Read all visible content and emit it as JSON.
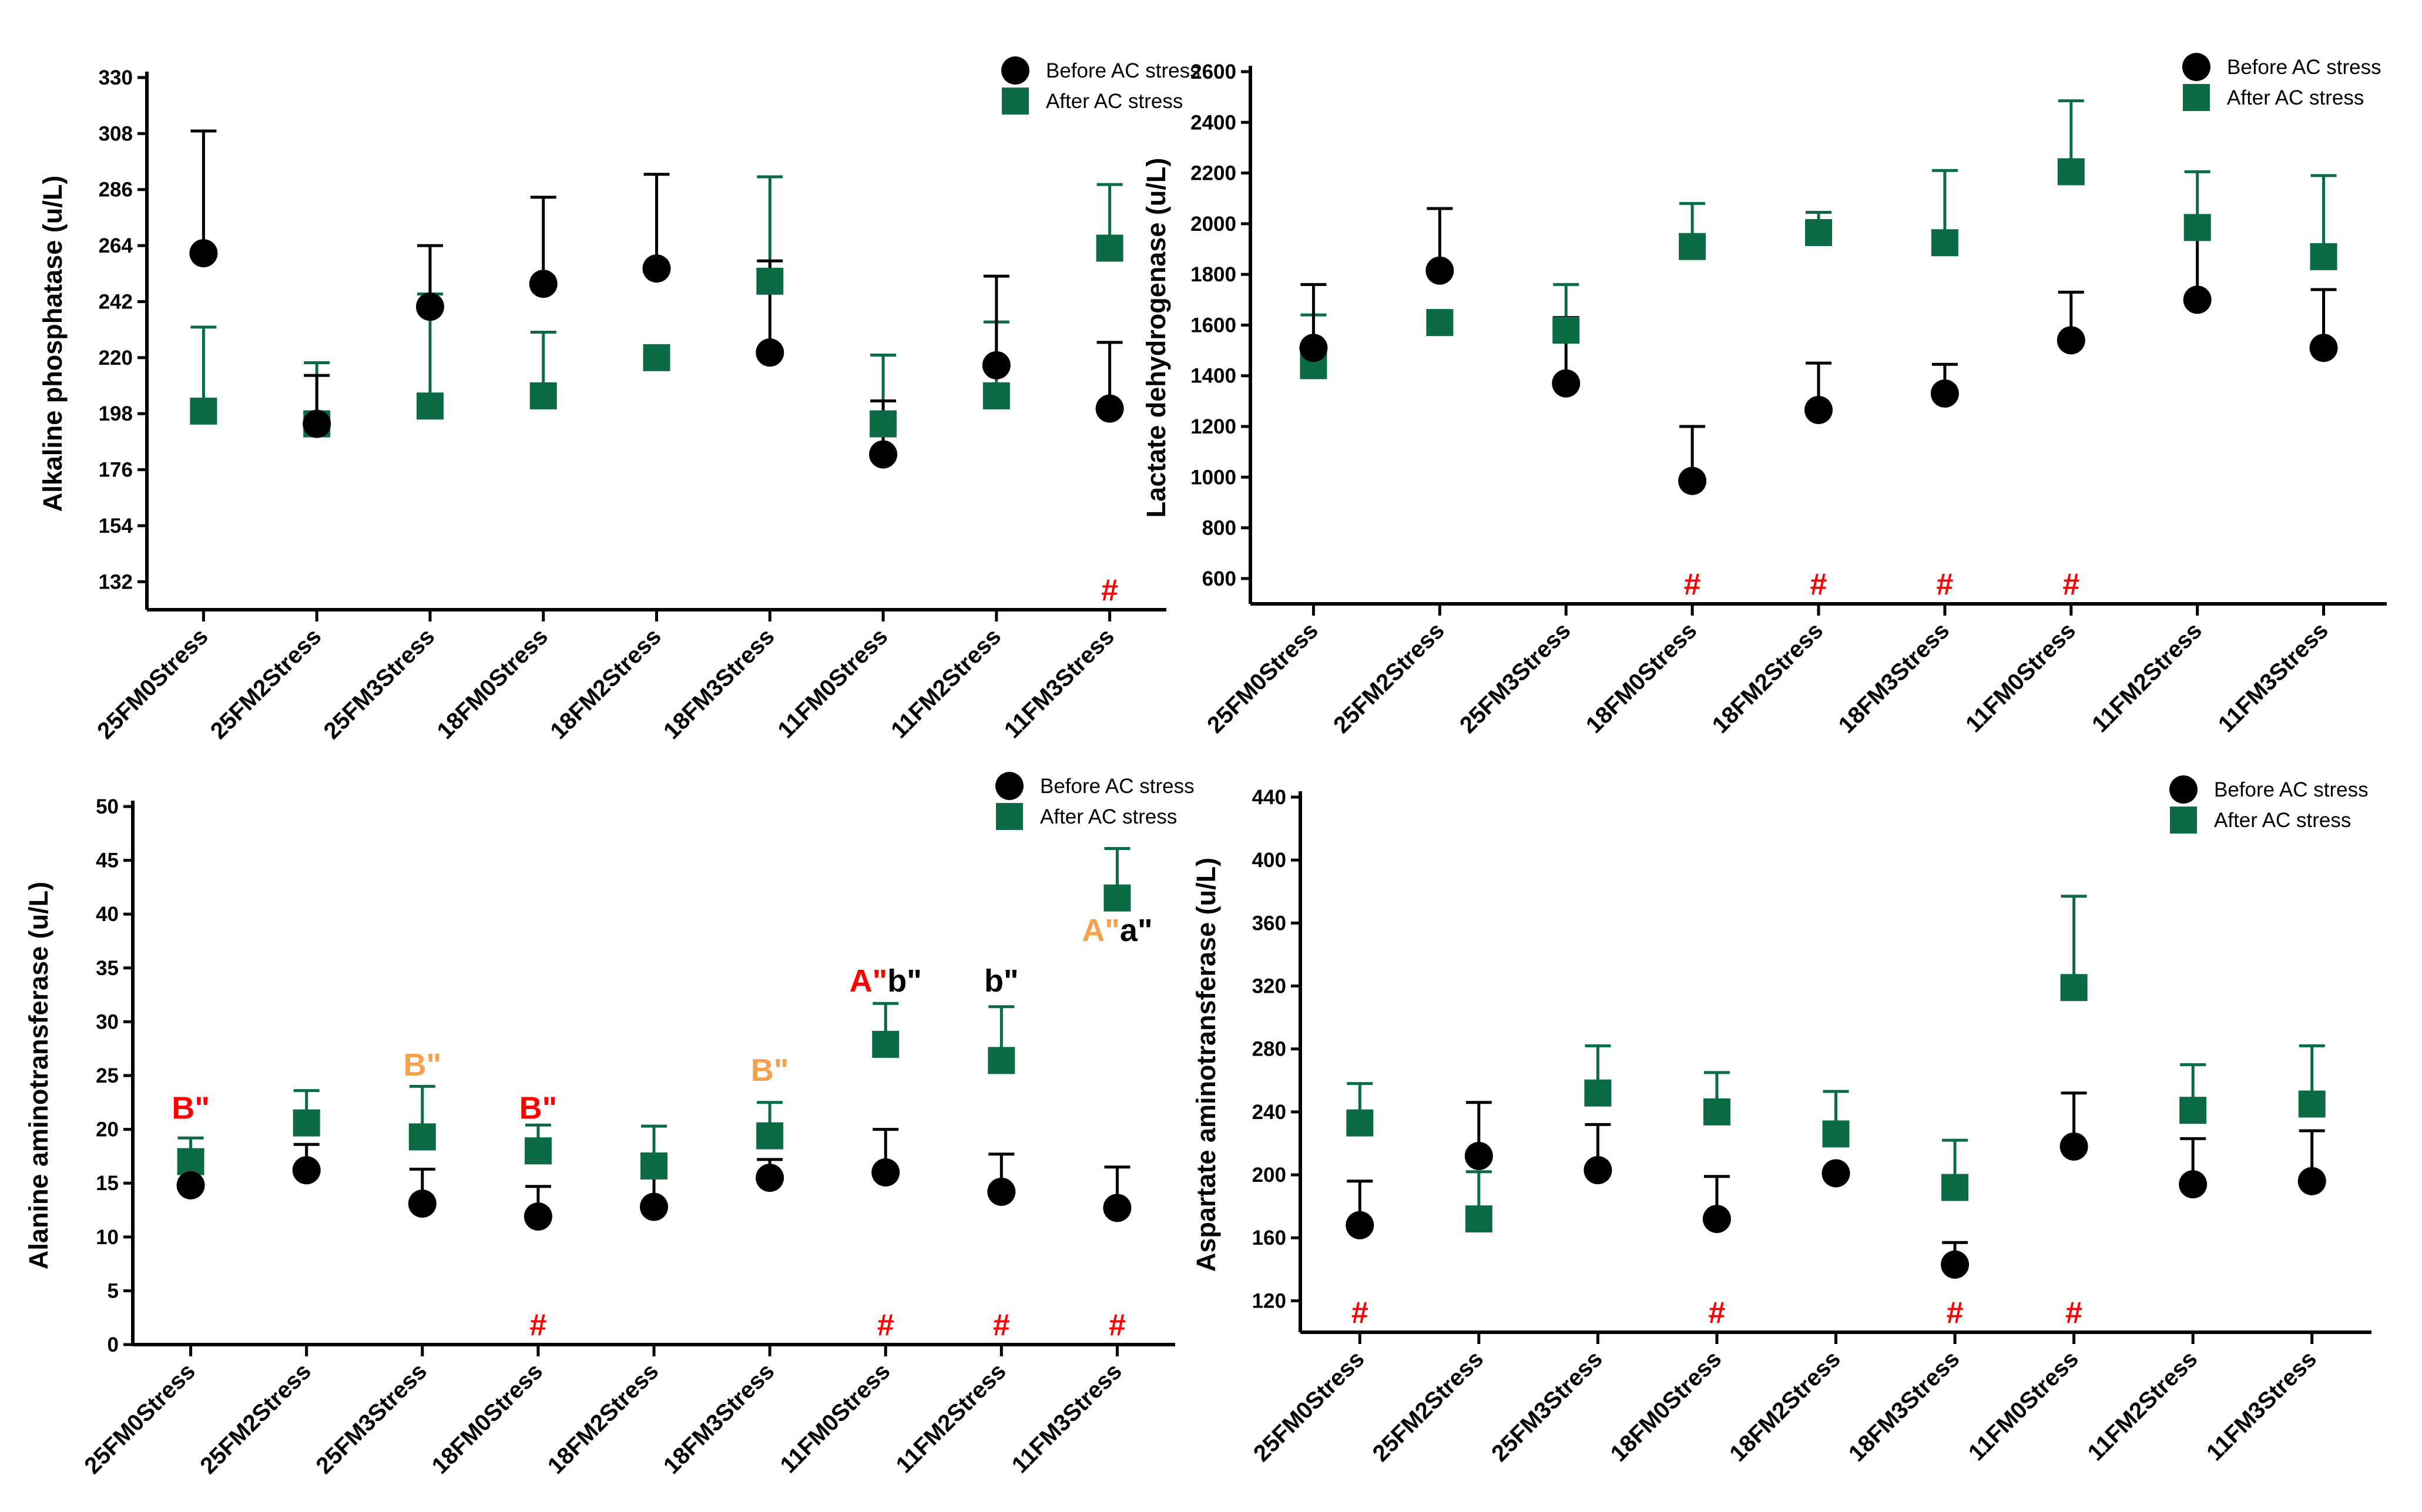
{
  "chart_data": [
    {
      "type": "scatter",
      "ylabel": "Alkaline phosphatase (u/L)",
      "ylim": [
        121,
        330
      ],
      "yticks": [
        132,
        154,
        176,
        198,
        220,
        242,
        264,
        286,
        308,
        330
      ],
      "categories": [
        "25FM0Stress",
        "25FM2Stress",
        "25FM3Stress",
        "18FM0Stress",
        "18FM2Stress",
        "18FM3Stress",
        "11FM0Stress",
        "11FM2Stress",
        "11FM3Stress"
      ],
      "legend": [
        "Before AC stress",
        "After AC stress"
      ],
      "series": [
        {
          "name": "Before AC stress",
          "values": [
            261,
            194,
            240,
            249,
            255,
            222,
            182,
            217,
            200
          ],
          "err_upper": [
            309,
            213,
            264,
            283,
            292,
            258,
            203,
            252,
            226
          ]
        },
        {
          "name": "After AC stress",
          "values": [
            199,
            194,
            201,
            205,
            220,
            250,
            194,
            205,
            263
          ],
          "err_upper": [
            232,
            218,
            245,
            230,
            220,
            291,
            221,
            234,
            288
          ]
        }
      ],
      "markers": [
        {
          "index": 8,
          "text": "#"
        }
      ],
      "annotations": []
    },
    {
      "type": "scatter",
      "ylabel": "Lactate dehydrogenase (u/L)",
      "ylim": [
        500,
        2600
      ],
      "yticks": [
        600,
        800,
        1000,
        1200,
        1400,
        1600,
        1800,
        2000,
        2200,
        2400,
        2600
      ],
      "categories": [
        "25FM0Stress",
        "25FM2Stress",
        "25FM3Stress",
        "18FM0Stress",
        "18FM2Stress",
        "18FM3Stress",
        "11FM0Stress",
        "11FM2Stress",
        "11FM3Stress"
      ],
      "legend": [
        "Before AC stress",
        "After AC stress"
      ],
      "series": [
        {
          "name": "Before AC stress",
          "values": [
            1510,
            1815,
            1370,
            985,
            1265,
            1330,
            1540,
            1700,
            1510
          ],
          "err_upper": [
            1760,
            2060,
            1630,
            1200,
            1450,
            1445,
            1730,
            1970,
            1740
          ]
        },
        {
          "name": "After AC stress",
          "values": [
            1440,
            1610,
            1580,
            1910,
            1965,
            1925,
            2205,
            1985,
            1870
          ],
          "err_upper": [
            1640,
            1610,
            1760,
            2080,
            2045,
            2210,
            2485,
            2205,
            2190
          ]
        }
      ],
      "markers": [
        {
          "index": 3,
          "text": "#"
        },
        {
          "index": 4,
          "text": "#"
        },
        {
          "index": 5,
          "text": "#"
        },
        {
          "index": 6,
          "text": "#"
        }
      ],
      "annotations": []
    },
    {
      "type": "scatter",
      "ylabel": "Alanine aminotransferase  (u/L)",
      "ylim": [
        0,
        50
      ],
      "yticks": [
        0,
        5,
        10,
        15,
        20,
        25,
        30,
        35,
        40,
        45,
        50
      ],
      "categories": [
        "25FM0Stress",
        "25FM2Stress",
        "25FM3Stress",
        "18FM0Stress",
        "18FM2Stress",
        "18FM3Stress",
        "11FM0Stress",
        "11FM2Stress",
        "11FM3Stress"
      ],
      "legend": [
        "Before AC stress",
        "After AC stress"
      ],
      "series": [
        {
          "name": "Before AC stress",
          "values": [
            14.8,
            16.2,
            13.1,
            11.9,
            12.8,
            15.5,
            16.0,
            14.2,
            12.7
          ],
          "err_upper": [
            16.6,
            18.6,
            16.3,
            14.7,
            16.4,
            17.2,
            20.0,
            17.7,
            16.5
          ]
        },
        {
          "name": "After AC stress",
          "values": [
            17.0,
            20.6,
            19.3,
            18.0,
            16.6,
            19.4,
            27.9,
            26.4,
            41.5
          ],
          "err_upper": [
            19.2,
            23.6,
            24.0,
            20.4,
            20.3,
            22.5,
            31.7,
            31.4,
            46.1
          ]
        }
      ],
      "markers": [
        {
          "index": 3,
          "text": "#"
        },
        {
          "index": 6,
          "text": "#"
        },
        {
          "index": 7,
          "text": "#"
        },
        {
          "index": 8,
          "text": "#"
        }
      ],
      "annotations": [
        {
          "index": 0,
          "value": 21.0,
          "parts": [
            {
              "text": "B\"",
              "color": "#ff0000"
            }
          ]
        },
        {
          "index": 2,
          "value": 25.0,
          "parts": [
            {
              "text": "B\"",
              "color": "#f5a04c"
            }
          ]
        },
        {
          "index": 3,
          "value": 21.0,
          "parts": [
            {
              "text": "B\"",
              "color": "#ff0000"
            }
          ]
        },
        {
          "index": 5,
          "value": 24.5,
          "parts": [
            {
              "text": "B\"",
              "color": "#f5a04c"
            }
          ]
        },
        {
          "index": 6,
          "value": 32.8,
          "parts": [
            {
              "text": "A\"",
              "color": "#ff0000"
            },
            {
              "text": "b\"",
              "color": "#000000"
            }
          ]
        },
        {
          "index": 7,
          "value": 32.8,
          "parts": [
            {
              "text": "b\"",
              "color": "#000000"
            }
          ]
        },
        {
          "index": 8,
          "value": 37.5,
          "parts": [
            {
              "text": "A\"",
              "color": "#f5a04c"
            },
            {
              "text": "a\"",
              "color": "#000000"
            }
          ]
        }
      ]
    },
    {
      "type": "scatter",
      "ylabel": "Aspartate aminotransferase (u/L)",
      "ylim": [
        100,
        440
      ],
      "yticks": [
        120,
        160,
        200,
        240,
        280,
        320,
        360,
        400,
        440
      ],
      "categories": [
        "25FM0Stress",
        "25FM2Stress",
        "25FM3Stress",
        "18FM0Stress",
        "18FM2Stress",
        "18FM3Stress",
        "11FM0Stress",
        "11FM2Stress",
        "11FM3Stress"
      ],
      "legend": [
        "Before AC stress",
        "After AC stress"
      ],
      "series": [
        {
          "name": "Before AC stress",
          "values": [
            168,
            212,
            203,
            172,
            201,
            143,
            218,
            194,
            196
          ],
          "err_upper": [
            196,
            246,
            232,
            199,
            201,
            157,
            252,
            223,
            228
          ]
        },
        {
          "name": "After AC stress",
          "values": [
            233,
            172,
            252,
            240,
            226,
            192,
            319,
            241,
            245
          ],
          "err_upper": [
            258,
            202,
            282,
            265,
            253,
            222,
            377,
            270,
            282
          ]
        }
      ],
      "markers": [
        {
          "index": 0,
          "text": "#"
        },
        {
          "index": 3,
          "text": "#"
        },
        {
          "index": 5,
          "text": "#"
        },
        {
          "index": 6,
          "text": "#"
        }
      ],
      "annotations": []
    }
  ],
  "colors": {
    "before": "#000000",
    "after": "#0c6b45",
    "marker": "#ff0000"
  }
}
